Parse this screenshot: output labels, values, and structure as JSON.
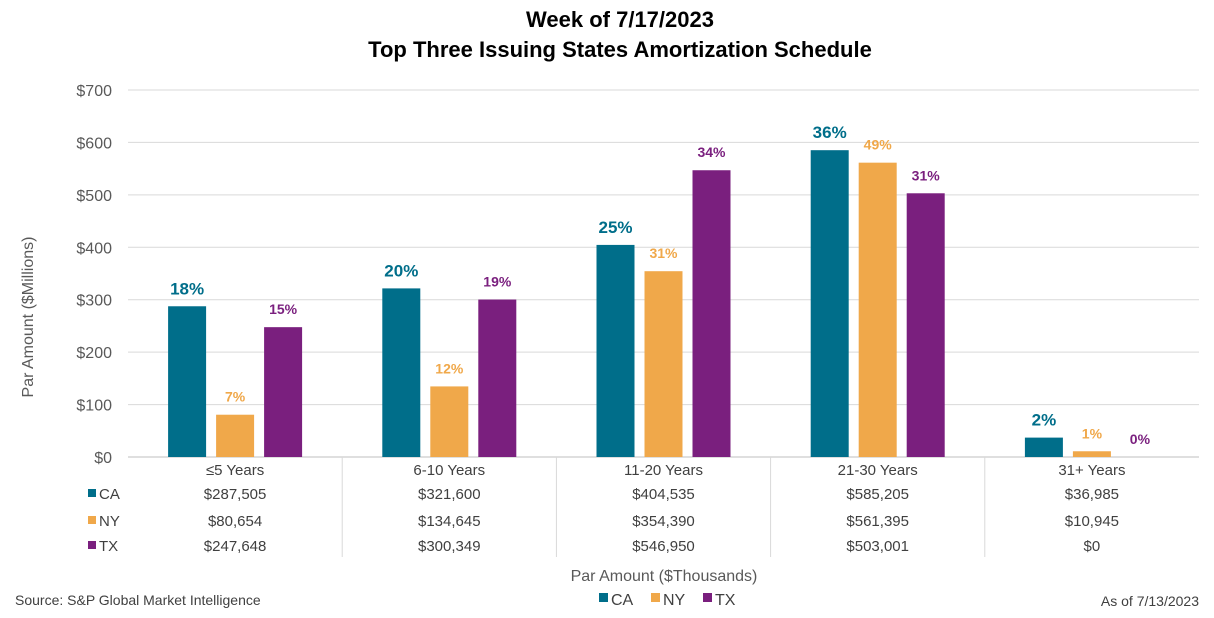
{
  "chart_data": {
    "type": "bar",
    "title": "Week of 7/17/2023",
    "subtitle": "Top Three Issuing States Amortization Schedule",
    "ylabel": "Par Amount  ($Millions)",
    "xlabel": "Par Amount ($Thousands)",
    "ylim": [
      0,
      700
    ],
    "yticks": [
      0,
      100,
      200,
      300,
      400,
      500,
      600,
      700
    ],
    "ytick_labels": [
      "$0",
      "$100",
      "$200",
      "$300",
      "$400",
      "$500",
      "$600",
      "$700"
    ],
    "categories": [
      "≤5 Years",
      "6-10 Years",
      "11-20 Years",
      "21-30 Years",
      "31+ Years"
    ],
    "series": [
      {
        "name": "CA",
        "color": "#006E8A",
        "values": [
          287.505,
          321.6,
          404.535,
          585.205,
          36.985
        ],
        "value_labels": [
          "$287,505",
          "$321,600",
          "$404,535",
          "$585,205",
          "$36,985"
        ],
        "percent_labels": [
          "18%",
          "20%",
          "25%",
          "36%",
          "2%"
        ]
      },
      {
        "name": "NY",
        "color": "#F0A84A",
        "values": [
          80.654,
          134.645,
          354.39,
          561.395,
          10.945
        ],
        "value_labels": [
          "$80,654",
          "$134,645",
          "$354,390",
          "$561,395",
          "$10,945"
        ],
        "percent_labels": [
          "7%",
          "12%",
          "31%",
          "49%",
          "1%"
        ]
      },
      {
        "name": "TX",
        "color": "#7A1F7E",
        "values": [
          247.648,
          300.349,
          546.95,
          503.001,
          0
        ],
        "value_labels": [
          "$247,648",
          "$300,349",
          "$546,950",
          "$503,001",
          "$0"
        ],
        "percent_labels": [
          "15%",
          "19%",
          "34%",
          "31%",
          "0%"
        ]
      }
    ],
    "legend": [
      "CA",
      "NY",
      "TX"
    ],
    "legend_position": "bottom",
    "grid": true
  },
  "footer": {
    "source": "Source: S&P Global Market Intelligence",
    "as_of": "As of 7/13/2023"
  }
}
